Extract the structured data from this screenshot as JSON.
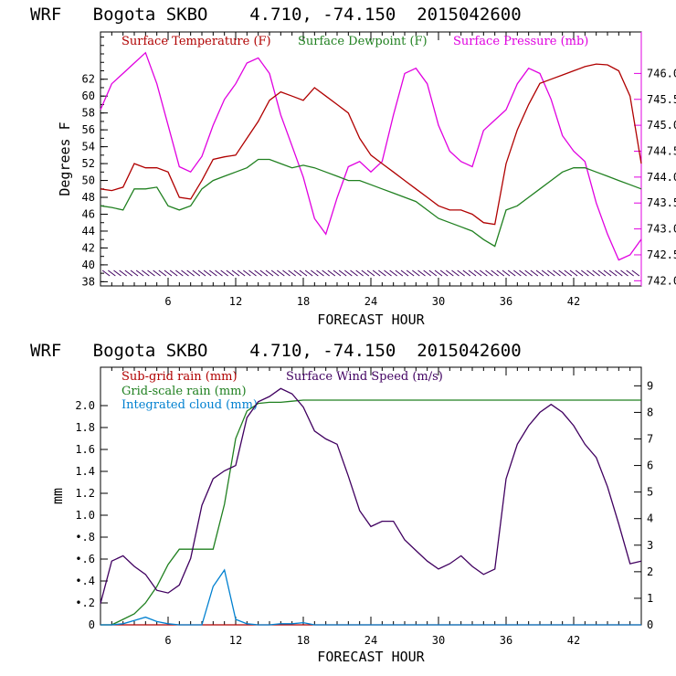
{
  "chart_data": [
    {
      "type": "line",
      "title": "WRF   Bogota SKBO    4.710, -74.150  2015042600",
      "xlabel": "FORECAST HOUR",
      "ylabel": "Degrees F",
      "xlim": [
        0,
        48
      ],
      "ylim": [
        37.5,
        67.6
      ],
      "y2lim": [
        741.9,
        746.8
      ],
      "x_ticks": [
        "6",
        "12",
        "18",
        "24",
        "30",
        "36",
        "42"
      ],
      "y_ticks": [
        "38",
        "40",
        "42",
        "44",
        "46",
        "48",
        "50",
        "52",
        "54",
        "56",
        "58",
        "60",
        "62"
      ],
      "y2_ticks": [
        "742.0",
        "742.5",
        "743.0",
        "743.5",
        "744.0",
        "744.5",
        "745.0",
        "745.5",
        "746.0"
      ],
      "colors": {
        "temp": "#b00000",
        "dew": "#208020",
        "pres": "#e000e0",
        "axis2": "#e000e0",
        "wind": "#400060"
      },
      "x": [
        0,
        1,
        2,
        3,
        4,
        5,
        6,
        7,
        8,
        9,
        10,
        11,
        12,
        13,
        14,
        15,
        16,
        17,
        18,
        19,
        20,
        21,
        22,
        23,
        24,
        25,
        26,
        27,
        28,
        29,
        30,
        31,
        32,
        33,
        34,
        35,
        36,
        37,
        38,
        39,
        40,
        41,
        42,
        43,
        44,
        45,
        46,
        47,
        48
      ],
      "series": [
        {
          "name": "Surface Temperature (F)",
          "key": "temp",
          "axis": "left",
          "values": [
            49,
            48.8,
            49.2,
            52,
            51.5,
            51.5,
            51,
            48,
            47.8,
            50,
            52.5,
            52.8,
            53,
            55,
            57,
            59.5,
            60.5,
            60,
            59.5,
            61,
            60,
            59,
            58,
            55,
            53,
            52,
            51,
            50,
            49,
            48,
            47,
            46.5,
            46.5,
            46,
            45,
            44.8,
            52,
            56,
            59,
            61.5,
            62,
            62.5,
            63,
            63.5,
            63.8,
            63.7,
            63,
            60,
            52
          ]
        },
        {
          "name": "Surface Dewpoint (F)",
          "key": "dew",
          "axis": "left",
          "values": [
            47,
            46.8,
            46.5,
            49,
            49,
            49.2,
            47,
            46.5,
            47,
            49,
            50,
            50.5,
            51,
            51.5,
            52.5,
            52.5,
            52,
            51.5,
            51.8,
            51.5,
            51,
            50.5,
            50,
            50,
            49.5,
            49,
            48.5,
            48,
            47.5,
            46.5,
            45.5,
            45,
            44.5,
            44,
            43,
            42.2,
            46.5,
            47,
            48,
            49,
            50,
            51,
            51.5,
            51.5,
            51,
            50.5,
            50,
            49.5,
            49
          ]
        },
        {
          "name": "Surface Pressure (mb)",
          "key": "pres",
          "axis": "right",
          "values": [
            745.3,
            745.8,
            746.0,
            746.2,
            746.4,
            745.8,
            745.0,
            744.2,
            744.1,
            744.4,
            745.0,
            745.5,
            745.8,
            746.2,
            746.3,
            746.0,
            745.2,
            744.6,
            744.0,
            743.2,
            742.9,
            743.6,
            744.2,
            744.3,
            744.1,
            744.3,
            745.2,
            746.0,
            746.1,
            745.8,
            745.0,
            744.5,
            744.3,
            744.2,
            744.9,
            745.1,
            745.3,
            745.8,
            746.1,
            746.0,
            745.5,
            744.8,
            744.5,
            744.3,
            743.5,
            742.9,
            742.4,
            742.5,
            742.8
          ]
        }
      ]
    },
    {
      "type": "line",
      "title": "WRF   Bogota SKBO    4.710, -74.150  2015042600",
      "xlabel": "FORECAST HOUR",
      "ylabel": "mm",
      "xlim": [
        0,
        48
      ],
      "ylim": [
        0,
        2.35
      ],
      "y2lim": [
        0,
        9.7
      ],
      "x_ticks": [
        "6",
        "12",
        "18",
        "24",
        "30",
        "36",
        "42"
      ],
      "y_ticks": [
        "0",
        "•.2",
        "•.4",
        "•.6",
        "•.8",
        "1.0",
        "1.2",
        "1.4",
        "1.6",
        "1.8",
        "2.0"
      ],
      "y_tick_values": [
        0,
        0.2,
        0.4,
        0.6,
        0.8,
        1.0,
        1.2,
        1.4,
        1.6,
        1.8,
        2.0
      ],
      "y2_ticks": [
        "0",
        "1",
        "2",
        "3",
        "4",
        "5",
        "6",
        "7",
        "8",
        "9"
      ],
      "legend": [
        {
          "name": "Sub-grid rain (mm)",
          "key": "sub"
        },
        {
          "name": "Grid-scale rain (mm)",
          "key": "grid"
        },
        {
          "name": "Integrated cloud (mm)",
          "key": "cloud"
        },
        {
          "name": "Surface Wind Speed (m/s)",
          "key": "wind"
        }
      ],
      "colors": {
        "sub": "#b00000",
        "grid": "#208020",
        "cloud": "#0080d0",
        "wind": "#400060"
      },
      "x": [
        0,
        1,
        2,
        3,
        4,
        5,
        6,
        7,
        8,
        9,
        10,
        11,
        12,
        13,
        14,
        15,
        16,
        17,
        18,
        19,
        20,
        21,
        22,
        23,
        24,
        25,
        26,
        27,
        28,
        29,
        30,
        31,
        32,
        33,
        34,
        35,
        36,
        37,
        38,
        39,
        40,
        41,
        42,
        43,
        44,
        45,
        46,
        47,
        48
      ],
      "series": [
        {
          "name": "Grid-scale rain (mm)",
          "key": "grid",
          "axis": "left",
          "values": [
            0,
            0,
            0.05,
            0.1,
            0.2,
            0.35,
            0.55,
            0.69,
            0.69,
            0.69,
            0.69,
            1.1,
            1.7,
            1.95,
            2.02,
            2.03,
            2.03,
            2.04,
            2.05,
            2.05,
            2.05,
            2.05,
            2.05,
            2.05,
            2.05,
            2.05,
            2.05,
            2.05,
            2.05,
            2.05,
            2.05,
            2.05,
            2.05,
            2.05,
            2.05,
            2.05,
            2.05,
            2.05,
            2.05,
            2.05,
            2.05,
            2.05,
            2.05,
            2.05,
            2.05,
            2.05,
            2.05,
            2.05,
            2.05
          ]
        },
        {
          "name": "Integrated cloud (mm)",
          "key": "cloud",
          "axis": "left",
          "values": [
            0,
            0,
            0.01,
            0.04,
            0.07,
            0.03,
            0.01,
            0,
            0,
            0,
            0.35,
            0.5,
            0.05,
            0.01,
            0,
            0,
            0.01,
            0.01,
            0.02,
            0,
            0,
            0,
            0,
            0,
            0,
            0,
            0,
            0,
            0,
            0,
            0,
            0,
            0,
            0,
            0,
            0,
            0,
            0,
            0,
            0,
            0,
            0,
            0,
            0,
            0,
            0,
            0,
            0,
            0
          ]
        },
        {
          "name": "Surface Wind Speed (m/s)",
          "key": "wind",
          "axis": "right",
          "values": [
            0.8,
            2.4,
            2.6,
            2.2,
            1.9,
            1.3,
            1.2,
            1.5,
            2.5,
            4.5,
            5.5,
            5.8,
            6.0,
            7.8,
            8.4,
            8.6,
            8.9,
            8.7,
            8.2,
            7.3,
            7.0,
            6.8,
            5.6,
            4.3,
            3.7,
            3.9,
            3.9,
            3.2,
            2.8,
            2.4,
            2.1,
            2.3,
            2.6,
            2.2,
            1.9,
            2.1,
            5.5,
            6.8,
            7.5,
            8.0,
            8.3,
            8.0,
            7.5,
            6.8,
            6.3,
            5.2,
            3.8,
            2.3,
            2.4
          ]
        },
        {
          "name": "Sub-grid rain (mm)",
          "key": "sub",
          "axis": "left",
          "values": [
            0,
            0,
            0,
            0,
            0,
            0,
            0,
            0,
            0,
            0,
            0,
            0,
            0,
            0,
            0,
            0,
            0,
            0,
            0,
            0,
            0,
            0,
            0,
            0,
            0,
            0,
            0,
            0,
            0,
            0,
            0,
            0,
            0,
            0,
            0,
            0,
            0,
            0,
            0,
            0,
            0,
            0,
            0,
            0,
            0,
            0,
            0,
            0,
            0
          ]
        }
      ]
    }
  ]
}
